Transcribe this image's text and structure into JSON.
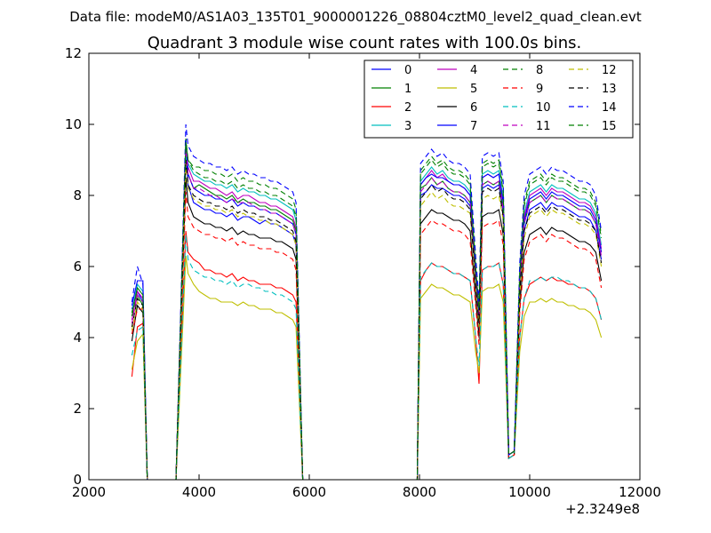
{
  "header": {
    "file_label": "Data file: modeM0/AS1A03_135T01_9000001226_08804cztM0_level2_quad_clean.evt"
  },
  "chart_data": {
    "type": "line",
    "title": "Quadrant 3 module wise count rates with 100.0s bins.",
    "xlabel": "",
    "ylabel": "",
    "x_offset_label": "+2.3249e8",
    "xlim": [
      2000,
      12000
    ],
    "ylim": [
      0,
      12
    ],
    "x_ticks": [
      "2000",
      "4000",
      "6000",
      "8000",
      "10000",
      "12000"
    ],
    "y_ticks": [
      "0",
      "2",
      "4",
      "6",
      "8",
      "10",
      "12"
    ],
    "grid": false,
    "legend_position": "top-right",
    "x": [
      2780,
      2880,
      2980,
      3060,
      3580,
      3760,
      3800,
      3900,
      4000,
      4100,
      4200,
      4300,
      4400,
      4500,
      4600,
      4700,
      4800,
      4900,
      5000,
      5100,
      5200,
      5300,
      5400,
      5500,
      5600,
      5700,
      5760,
      5880,
      7960,
      8020,
      8120,
      8220,
      8320,
      8420,
      8520,
      8620,
      8720,
      8820,
      8920,
      9020,
      9080,
      9140,
      9240,
      9340,
      9440,
      9520,
      9620,
      9720,
      9820,
      9900,
      10000,
      10100,
      10200,
      10300,
      10400,
      10500,
      10600,
      10700,
      10800,
      10900,
      11000,
      11100,
      11200,
      11300
    ],
    "series": [
      {
        "name": "0",
        "color": "#0000ff",
        "dash": false,
        "values": [
          4.8,
          5.3,
          5.0,
          0,
          0,
          9.3,
          8.3,
          7.8,
          7.7,
          7.6,
          7.6,
          7.5,
          7.5,
          7.4,
          7.5,
          7.3,
          7.4,
          7.4,
          7.3,
          7.2,
          7.3,
          7.2,
          7.2,
          7.1,
          7.0,
          6.9,
          6.6,
          0,
          0,
          8.0,
          8.1,
          8.3,
          8.2,
          8.2,
          8.1,
          8.0,
          8.0,
          7.9,
          7.7,
          5.6,
          4.4,
          8.2,
          8.3,
          8.2,
          8.3,
          7.5,
          0.7,
          0.8,
          5.3,
          7.0,
          7.6,
          7.7,
          7.8,
          7.6,
          7.8,
          7.7,
          7.7,
          7.6,
          7.5,
          7.4,
          7.4,
          7.3,
          7.0,
          6.2
        ]
      },
      {
        "name": "1",
        "color": "#008000",
        "dash": false,
        "values": [
          4.6,
          5.2,
          4.9,
          0,
          0,
          9.4,
          8.6,
          8.2,
          8.3,
          8.2,
          8.1,
          8.0,
          8.0,
          7.9,
          8.0,
          7.8,
          7.9,
          7.8,
          7.8,
          7.7,
          7.7,
          7.6,
          7.6,
          7.5,
          7.4,
          7.3,
          7.0,
          0,
          0,
          8.2,
          8.3,
          8.5,
          8.3,
          8.4,
          8.2,
          8.1,
          8.1,
          8.0,
          7.8,
          5.7,
          4.5,
          8.3,
          8.4,
          8.3,
          8.4,
          7.6,
          0.7,
          0.8,
          5.5,
          7.2,
          7.8,
          7.9,
          8.0,
          7.8,
          8.0,
          7.9,
          7.9,
          7.8,
          7.7,
          7.6,
          7.6,
          7.5,
          7.2,
          6.4
        ]
      },
      {
        "name": "2",
        "color": "#ff0000",
        "dash": false,
        "values": [
          2.9,
          4.3,
          4.4,
          0,
          0,
          7.0,
          6.4,
          6.2,
          6.1,
          5.9,
          5.9,
          5.8,
          5.8,
          5.7,
          5.8,
          5.6,
          5.7,
          5.6,
          5.6,
          5.5,
          5.5,
          5.5,
          5.4,
          5.4,
          5.3,
          5.2,
          5.0,
          0,
          0,
          5.6,
          5.9,
          6.1,
          6.0,
          6.0,
          5.9,
          5.8,
          5.8,
          5.7,
          5.6,
          4.0,
          2.7,
          5.9,
          6.0,
          6.0,
          6.1,
          5.5,
          0.6,
          0.7,
          4.0,
          5.1,
          5.5,
          5.6,
          5.7,
          5.6,
          5.7,
          5.6,
          5.6,
          5.5,
          5.5,
          5.4,
          5.4,
          5.3,
          5.1,
          4.5
        ]
      },
      {
        "name": "3",
        "color": "#00bfbf",
        "dash": false,
        "values": [
          4.7,
          5.5,
          5.3,
          0,
          0,
          9.1,
          8.9,
          8.6,
          8.5,
          8.4,
          8.4,
          8.3,
          8.3,
          8.2,
          8.3,
          8.1,
          8.2,
          8.1,
          8.1,
          8.0,
          8.0,
          7.9,
          7.9,
          7.8,
          7.7,
          7.6,
          7.3,
          0,
          0,
          8.4,
          8.6,
          8.8,
          8.6,
          8.7,
          8.5,
          8.4,
          8.4,
          8.3,
          8.1,
          5.9,
          4.7,
          8.6,
          8.7,
          8.6,
          8.7,
          7.9,
          0.7,
          0.8,
          5.7,
          7.5,
          8.1,
          8.2,
          8.3,
          8.1,
          8.3,
          8.2,
          8.2,
          8.1,
          8.0,
          7.9,
          7.9,
          7.8,
          7.5,
          6.6
        ]
      },
      {
        "name": "4",
        "color": "#bf00bf",
        "dash": false,
        "values": [
          4.5,
          5.3,
          5.1,
          0,
          0,
          9.5,
          8.8,
          8.4,
          8.4,
          8.3,
          8.2,
          8.2,
          8.1,
          8.0,
          8.1,
          7.9,
          8.0,
          8.0,
          7.9,
          7.8,
          7.8,
          7.7,
          7.7,
          7.6,
          7.5,
          7.4,
          7.1,
          0,
          0,
          8.3,
          8.5,
          8.7,
          8.5,
          8.6,
          8.4,
          8.3,
          8.3,
          8.2,
          8.0,
          5.8,
          4.6,
          8.5,
          8.6,
          8.5,
          8.6,
          7.8,
          0.7,
          0.8,
          5.6,
          7.4,
          8.0,
          8.1,
          8.2,
          8.0,
          8.2,
          8.1,
          8.1,
          8.0,
          7.9,
          7.8,
          7.8,
          7.7,
          7.4,
          6.5
        ]
      },
      {
        "name": "5",
        "color": "#bfbf00",
        "dash": false,
        "values": [
          3.1,
          3.9,
          4.1,
          0,
          0,
          6.3,
          5.8,
          5.5,
          5.3,
          5.2,
          5.1,
          5.1,
          5.0,
          5.0,
          5.0,
          4.9,
          5.0,
          4.9,
          4.9,
          4.8,
          4.8,
          4.8,
          4.7,
          4.7,
          4.6,
          4.5,
          4.3,
          0,
          0,
          5.1,
          5.3,
          5.5,
          5.4,
          5.4,
          5.3,
          5.2,
          5.2,
          5.1,
          5.0,
          3.6,
          3.0,
          5.3,
          5.4,
          5.4,
          5.5,
          5.0,
          0.6,
          0.7,
          3.6,
          4.6,
          5.0,
          5.0,
          5.1,
          5.0,
          5.1,
          5.0,
          5.0,
          4.9,
          4.9,
          4.8,
          4.8,
          4.7,
          4.5,
          4.0
        ]
      },
      {
        "name": "6",
        "color": "#000000",
        "dash": false,
        "values": [
          3.9,
          4.9,
          4.7,
          0,
          0,
          8.5,
          7.8,
          7.4,
          7.3,
          7.2,
          7.2,
          7.1,
          7.1,
          7.0,
          7.1,
          6.9,
          7.0,
          6.9,
          6.9,
          6.8,
          6.8,
          6.8,
          6.7,
          6.7,
          6.6,
          6.5,
          6.2,
          0,
          0,
          7.2,
          7.4,
          7.6,
          7.5,
          7.5,
          7.4,
          7.3,
          7.3,
          7.2,
          7.0,
          5.1,
          4.0,
          7.4,
          7.5,
          7.5,
          7.6,
          6.9,
          0.6,
          0.7,
          4.9,
          6.4,
          6.9,
          7.0,
          7.1,
          6.9,
          7.1,
          7.0,
          7.0,
          6.9,
          6.8,
          6.7,
          6.7,
          6.6,
          6.4,
          5.6
        ]
      },
      {
        "name": "7",
        "color": "#0000ff",
        "dash": false,
        "values": [
          4.9,
          5.6,
          5.6,
          0,
          0,
          9.6,
          8.6,
          8.2,
          8.1,
          8.0,
          8.0,
          7.9,
          7.9,
          7.8,
          7.9,
          7.7,
          7.8,
          7.7,
          7.7,
          7.6,
          7.6,
          7.5,
          7.5,
          7.4,
          7.3,
          7.2,
          6.9,
          0,
          0,
          8.3,
          8.5,
          8.6,
          8.5,
          8.5,
          8.4,
          8.3,
          8.3,
          8.2,
          8.0,
          5.8,
          4.6,
          8.5,
          8.6,
          8.5,
          8.6,
          7.8,
          0.7,
          0.8,
          5.6,
          7.3,
          7.9,
          8.0,
          8.1,
          7.9,
          8.1,
          8.0,
          8.0,
          7.9,
          7.8,
          7.7,
          7.7,
          7.6,
          7.3,
          6.4
        ]
      },
      {
        "name": "8",
        "color": "#008000",
        "dash": true,
        "values": [
          4.7,
          5.4,
          5.2,
          0,
          0,
          9.6,
          9.0,
          8.8,
          8.8,
          8.7,
          8.7,
          8.6,
          8.6,
          8.5,
          8.6,
          8.4,
          8.5,
          8.4,
          8.4,
          8.3,
          8.3,
          8.2,
          8.2,
          8.1,
          8.0,
          7.9,
          7.6,
          0,
          0,
          8.7,
          8.9,
          9.1,
          8.9,
          9.0,
          8.8,
          8.7,
          8.7,
          8.6,
          8.4,
          6.1,
          4.9,
          8.9,
          9.0,
          8.9,
          9.0,
          8.2,
          0.7,
          0.8,
          5.9,
          7.8,
          8.4,
          8.5,
          8.6,
          8.4,
          8.6,
          8.5,
          8.5,
          8.4,
          8.3,
          8.2,
          8.2,
          8.1,
          7.8,
          6.9
        ]
      },
      {
        "name": "9",
        "color": "#ff0000",
        "dash": true,
        "values": [
          4.1,
          4.8,
          4.8,
          0,
          0,
          8.1,
          7.4,
          7.1,
          7.0,
          6.9,
          6.9,
          6.8,
          6.8,
          6.7,
          6.8,
          6.6,
          6.7,
          6.6,
          6.6,
          6.5,
          6.5,
          6.5,
          6.4,
          6.4,
          6.3,
          6.2,
          5.9,
          0,
          0,
          6.9,
          7.1,
          7.3,
          7.2,
          7.2,
          7.1,
          7.0,
          7.0,
          6.9,
          6.7,
          4.9,
          3.8,
          7.1,
          7.2,
          7.2,
          7.3,
          6.6,
          0.6,
          0.7,
          4.7,
          6.2,
          6.7,
          6.8,
          6.9,
          6.7,
          6.9,
          6.8,
          6.8,
          6.7,
          6.6,
          6.5,
          6.5,
          6.4,
          6.2,
          5.4
        ]
      },
      {
        "name": "10",
        "color": "#00bfbf",
        "dash": true,
        "values": [
          3.5,
          4.2,
          4.3,
          0,
          0,
          6.9,
          6.2,
          5.9,
          5.8,
          5.7,
          5.7,
          5.6,
          5.6,
          5.5,
          5.6,
          5.4,
          5.5,
          5.5,
          5.4,
          5.4,
          5.3,
          5.3,
          5.2,
          5.2,
          5.1,
          5.0,
          4.8,
          0,
          0,
          5.7,
          5.9,
          6.1,
          6.0,
          6.0,
          5.9,
          5.8,
          5.8,
          5.7,
          5.6,
          4.0,
          3.2,
          5.9,
          6.0,
          6.0,
          6.1,
          5.5,
          0.6,
          0.7,
          4.0,
          5.1,
          5.6,
          5.6,
          5.7,
          5.6,
          5.7,
          5.7,
          5.6,
          5.6,
          5.5,
          5.4,
          5.4,
          5.3,
          5.1,
          4.5
        ]
      },
      {
        "name": "11",
        "color": "#bf00bf",
        "dash": true,
        "values": [
          4.4,
          5.2,
          5.0,
          0,
          0,
          9.3,
          8.6,
          8.2,
          8.2,
          8.1,
          8.0,
          8.0,
          7.9,
          7.8,
          7.9,
          7.8,
          7.8,
          7.8,
          7.7,
          7.6,
          7.6,
          7.5,
          7.5,
          7.4,
          7.3,
          7.2,
          6.9,
          0,
          0,
          8.1,
          8.3,
          8.5,
          8.3,
          8.4,
          8.2,
          8.1,
          8.1,
          8.0,
          7.8,
          5.7,
          4.5,
          8.3,
          8.4,
          8.3,
          8.4,
          7.6,
          0.7,
          0.8,
          5.5,
          7.2,
          7.8,
          7.9,
          8.0,
          7.8,
          8.0,
          7.9,
          7.9,
          7.8,
          7.7,
          7.6,
          7.6,
          7.5,
          7.2,
          6.3
        ]
      },
      {
        "name": "12",
        "color": "#bfbf00",
        "dash": true,
        "values": [
          4.2,
          5.0,
          4.8,
          0,
          0,
          8.9,
          8.2,
          7.9,
          7.8,
          7.7,
          7.7,
          7.6,
          7.6,
          7.5,
          7.6,
          7.4,
          7.5,
          7.4,
          7.4,
          7.3,
          7.3,
          7.2,
          7.2,
          7.1,
          7.0,
          6.9,
          6.6,
          0,
          0,
          7.7,
          7.9,
          8.1,
          7.9,
          8.0,
          7.8,
          7.7,
          7.7,
          7.6,
          7.5,
          5.4,
          4.3,
          7.9,
          8.0,
          7.9,
          8.0,
          7.3,
          0.7,
          0.8,
          5.2,
          6.8,
          7.4,
          7.5,
          7.6,
          7.4,
          7.6,
          7.5,
          7.5,
          7.4,
          7.3,
          7.2,
          7.2,
          7.1,
          6.9,
          6.0
        ]
      },
      {
        "name": "13",
        "color": "#000000",
        "dash": true,
        "values": [
          4.3,
          5.1,
          4.9,
          0,
          0,
          9.0,
          8.3,
          8.0,
          7.9,
          7.8,
          7.8,
          7.7,
          7.7,
          7.6,
          7.7,
          7.5,
          7.6,
          7.5,
          7.5,
          7.4,
          7.4,
          7.3,
          7.3,
          7.2,
          7.1,
          7.0,
          6.7,
          0,
          0,
          7.9,
          8.1,
          8.3,
          8.1,
          8.2,
          8.0,
          7.9,
          7.9,
          7.8,
          7.6,
          5.5,
          4.4,
          8.1,
          8.2,
          8.1,
          8.2,
          7.4,
          0.7,
          0.8,
          5.3,
          7.0,
          7.5,
          7.6,
          7.7,
          7.5,
          7.7,
          7.6,
          7.6,
          7.5,
          7.4,
          7.3,
          7.3,
          7.2,
          7.0,
          6.1
        ]
      },
      {
        "name": "14",
        "color": "#0000ff",
        "dash": true,
        "values": [
          5.0,
          6.0,
          5.5,
          0,
          0,
          10.0,
          9.4,
          9.1,
          9.0,
          8.9,
          8.9,
          8.8,
          8.8,
          8.7,
          8.8,
          8.6,
          8.7,
          8.6,
          8.6,
          8.5,
          8.5,
          8.4,
          8.4,
          8.3,
          8.2,
          8.1,
          7.8,
          0,
          0,
          8.9,
          9.1,
          9.3,
          9.1,
          9.2,
          9.0,
          8.9,
          8.9,
          8.8,
          8.6,
          6.3,
          5.0,
          9.1,
          9.2,
          9.1,
          9.2,
          8.4,
          0.7,
          0.8,
          6.1,
          8.0,
          8.6,
          8.7,
          8.8,
          8.6,
          8.8,
          8.7,
          8.7,
          8.6,
          8.5,
          8.4,
          8.4,
          8.3,
          8.0,
          7.0
        ]
      },
      {
        "name": "15",
        "color": "#008000",
        "dash": true,
        "values": [
          4.6,
          5.4,
          5.2,
          0,
          0,
          9.5,
          9.0,
          8.7,
          8.6,
          8.5,
          8.5,
          8.4,
          8.4,
          8.3,
          8.4,
          8.2,
          8.3,
          8.2,
          8.2,
          8.1,
          8.1,
          8.0,
          8.0,
          7.9,
          7.8,
          7.7,
          7.4,
          0,
          0,
          8.6,
          8.8,
          9.0,
          8.8,
          8.9,
          8.7,
          8.6,
          8.6,
          8.5,
          8.3,
          6.0,
          4.8,
          8.8,
          8.9,
          8.8,
          8.9,
          8.1,
          0.7,
          0.8,
          5.8,
          7.7,
          8.3,
          8.4,
          8.5,
          8.3,
          8.5,
          8.4,
          8.4,
          8.3,
          8.2,
          8.1,
          8.1,
          8.0,
          7.7,
          6.8
        ]
      }
    ]
  }
}
